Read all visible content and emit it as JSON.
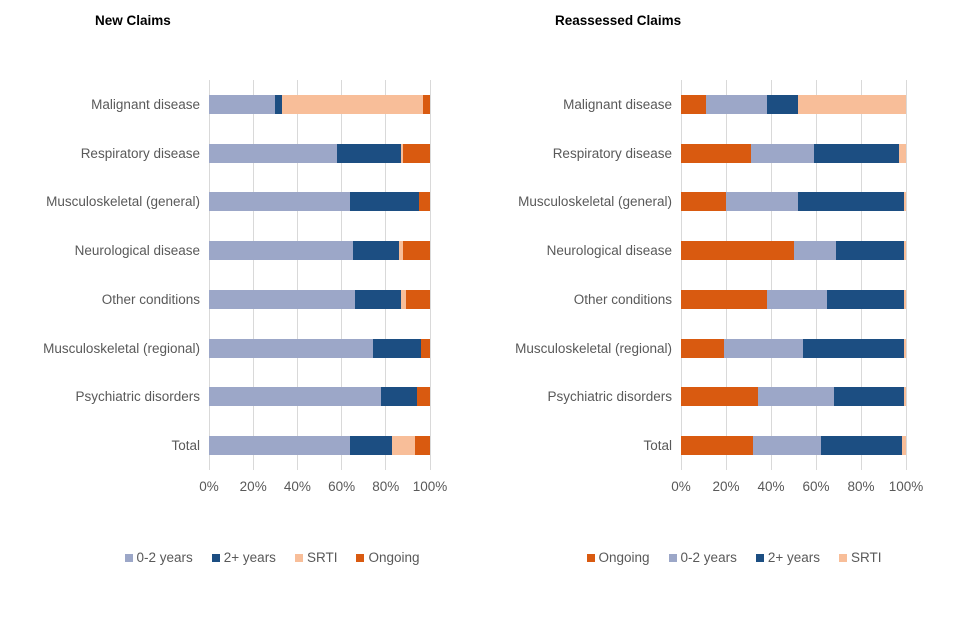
{
  "theme": {
    "background": "#ffffff",
    "grid_color": "#d9d9d9",
    "text_color": "#595959",
    "title_color": "#000000",
    "palette": {
      "0-2 years": "#9ca7c8",
      "2+ years": "#1c4e82",
      "SRTI": "#f8be99",
      "Ongoing": "#d95a10"
    }
  },
  "chart_data": [
    {
      "type": "bar",
      "stacked": true,
      "orientation": "horizontal",
      "title": "New Claims",
      "categories": [
        "Malignant disease",
        "Respiratory disease",
        "Musculoskeletal (general)",
        "Neurological disease",
        "Other conditions",
        "Musculoskeletal (regional)",
        "Psychiatric disorders",
        "Total"
      ],
      "series": [
        {
          "name": "0-2 years",
          "color": "#9ca7c8",
          "values": [
            30,
            58,
            64,
            65,
            66,
            74,
            78,
            64
          ]
        },
        {
          "name": "2+ years",
          "color": "#1c4e82",
          "values": [
            3,
            29,
            31,
            21,
            21,
            22,
            16,
            19
          ]
        },
        {
          "name": "SRTI",
          "color": "#f8be99",
          "values": [
            64,
            1,
            0,
            2,
            2,
            0,
            0,
            10
          ]
        },
        {
          "name": "Ongoing",
          "color": "#d95a10",
          "values": [
            3,
            12,
            5,
            12,
            11,
            4,
            6,
            7
          ]
        }
      ],
      "xlabel": "",
      "ylabel": "",
      "xlim": [
        0,
        100
      ],
      "x_ticks": [
        "0%",
        "20%",
        "40%",
        "60%",
        "80%",
        "100%"
      ],
      "grid": true,
      "legend_position": "bottom",
      "legend_order": [
        "0-2 years",
        "2+ years",
        "SRTI",
        "Ongoing"
      ]
    },
    {
      "type": "bar",
      "stacked": true,
      "orientation": "horizontal",
      "title": "Reassessed Claims",
      "categories": [
        "Malignant disease",
        "Respiratory disease",
        "Musculoskeletal (general)",
        "Neurological disease",
        "Other conditions",
        "Musculoskeletal (regional)",
        "Psychiatric disorders",
        "Total"
      ],
      "series": [
        {
          "name": "Ongoing",
          "color": "#d95a10",
          "values": [
            11,
            31,
            20,
            50,
            38,
            19,
            34,
            32
          ]
        },
        {
          "name": "0-2 years",
          "color": "#9ca7c8",
          "values": [
            27,
            28,
            32,
            19,
            27,
            35,
            34,
            30
          ]
        },
        {
          "name": "2+ years",
          "color": "#1c4e82",
          "values": [
            14,
            38,
            47,
            30,
            34,
            45,
            31,
            36
          ]
        },
        {
          "name": "SRTI",
          "color": "#f8be99",
          "values": [
            48,
            3,
            1,
            1,
            1,
            1,
            1,
            2
          ]
        }
      ],
      "xlabel": "",
      "ylabel": "",
      "xlim": [
        0,
        100
      ],
      "x_ticks": [
        "0%",
        "20%",
        "40%",
        "60%",
        "80%",
        "100%"
      ],
      "grid": true,
      "legend_position": "bottom",
      "legend_order": [
        "Ongoing",
        "0-2 years",
        "2+ years",
        "SRTI"
      ]
    }
  ]
}
